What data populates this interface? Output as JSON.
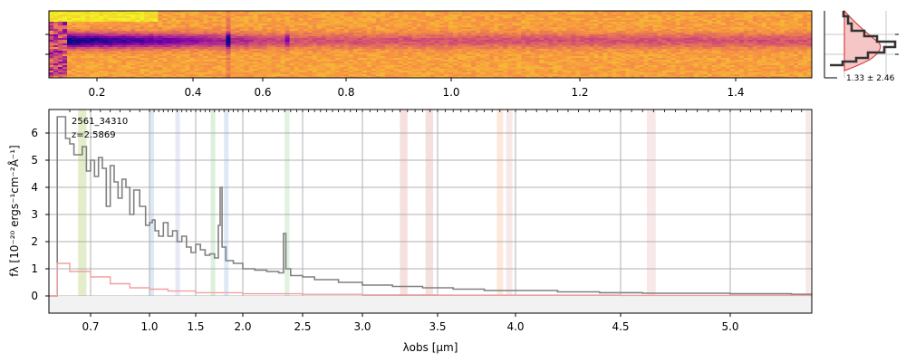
{
  "chart_data": [
    {
      "type": "heatmap",
      "panel": "2d-spectrum",
      "top_axis_ticks": [
        "0.2",
        "0.4",
        "0.6",
        "0.8",
        "1.0",
        "1.2",
        "1.4"
      ],
      "colormap": "plasma"
    },
    {
      "type": "line",
      "panel": "histogram",
      "annotation": "1.33 ± 2.46"
    },
    {
      "type": "line",
      "panel": "1d-spectrum",
      "id_label": "2561_34310",
      "z_label": "z=2.5869",
      "xlabel": "λobs [μm]",
      "ylabel": "fλ [10⁻²⁰ ergs⁻¹cm⁻²Å⁻¹]",
      "xlim": [
        0.6,
        5.4
      ],
      "ylim": [
        -0.7,
        6.8
      ],
      "x_ticks": [
        0.7,
        1.0,
        1.5,
        2.0,
        2.5,
        3.0,
        3.5,
        4.0,
        4.5,
        5.0
      ],
      "x_tick_labels": [
        "0.7",
        "1.0",
        "1.5",
        "2.0",
        "2.5",
        "3.0",
        "3.5",
        "4.0",
        "4.5",
        "5.0"
      ],
      "y_ticks": [
        0,
        1,
        2,
        3,
        4,
        5,
        6
      ],
      "y_tick_labels": [
        "0",
        "1",
        "2",
        "3",
        "4",
        "5",
        "6"
      ],
      "grid": true,
      "bands": [
        {
          "x": 0.67,
          "w": 0.02,
          "color": "#d9e6b3"
        },
        {
          "x": 1.0,
          "w": 0.02,
          "color": "#cfe0f2"
        },
        {
          "x": 1.28,
          "w": 0.025,
          "color": "#dde0f2"
        },
        {
          "x": 1.66,
          "w": 0.03,
          "color": "#cfe8cf"
        },
        {
          "x": 1.8,
          "w": 0.03,
          "color": "#cfe0f2"
        },
        {
          "x": 2.35,
          "w": 0.04,
          "color": "#d4ecd4"
        },
        {
          "x": 3.25,
          "w": 0.05,
          "color": "#f2d2d2"
        },
        {
          "x": 3.42,
          "w": 0.05,
          "color": "#f2d2d2"
        },
        {
          "x": 3.88,
          "w": 0.04,
          "color": "#fbe0cc"
        },
        {
          "x": 3.94,
          "w": 0.04,
          "color": "#f6dede"
        },
        {
          "x": 4.62,
          "w": 0.04,
          "color": "#f6dede"
        },
        {
          "x": 5.37,
          "w": 0.02,
          "color": "#f6dede"
        }
      ],
      "series": [
        {
          "color": "#808080",
          "x": [
            0.6,
            0.62,
            0.64,
            0.65,
            0.66,
            0.68,
            0.69,
            0.7,
            0.72,
            0.74,
            0.76,
            0.78,
            0.8,
            0.82,
            0.84,
            0.86,
            0.88,
            0.9,
            0.92,
            0.95,
            0.98,
            1.0,
            1.03,
            1.06,
            1.1,
            1.15,
            1.2,
            1.25,
            1.3,
            1.35,
            1.4,
            1.45,
            1.5,
            1.55,
            1.6,
            1.65,
            1.7,
            1.74,
            1.76,
            1.78,
            1.82,
            1.9,
            2.0,
            2.1,
            2.2,
            2.3,
            2.34,
            2.36,
            2.4,
            2.5,
            2.6,
            2.8,
            3.0,
            3.2,
            3.4,
            3.6,
            3.8,
            4.0,
            4.2,
            4.4,
            4.6,
            4.8,
            5.0,
            5.2,
            5.3
          ],
          "y": [
            0,
            6.6,
            5.8,
            5.6,
            5.2,
            5.5,
            4.6,
            5.0,
            4.4,
            5.1,
            4.7,
            3.3,
            4.8,
            4.2,
            3.6,
            4.3,
            4.0,
            3.0,
            3.9,
            3.3,
            2.6,
            2.7,
            2.8,
            2.4,
            2.2,
            2.7,
            2.2,
            2.4,
            2.0,
            2.2,
            1.8,
            1.6,
            1.9,
            1.7,
            1.5,
            1.55,
            1.4,
            2.6,
            4.0,
            1.8,
            1.3,
            1.2,
            1.0,
            0.95,
            0.9,
            0.85,
            2.3,
            1.0,
            0.75,
            0.7,
            0.6,
            0.5,
            0.4,
            0.35,
            0.3,
            0.25,
            0.2,
            0.2,
            0.15,
            0.12,
            0.1,
            0.1,
            0.08,
            0.08,
            0.06
          ]
        },
        {
          "color": "#f2a0a0",
          "x": [
            0.6,
            0.62,
            0.65,
            0.7,
            0.8,
            0.9,
            1.0,
            1.2,
            1.5,
            2.0,
            2.5,
            3.0,
            3.5,
            4.0,
            4.5,
            5.0,
            5.3
          ],
          "y": [
            0,
            1.2,
            0.9,
            0.7,
            0.45,
            0.3,
            0.25,
            0.18,
            0.12,
            0.08,
            0.06,
            0.04,
            0.03,
            0.03,
            0.02,
            0.02,
            0.02
          ]
        }
      ]
    }
  ]
}
